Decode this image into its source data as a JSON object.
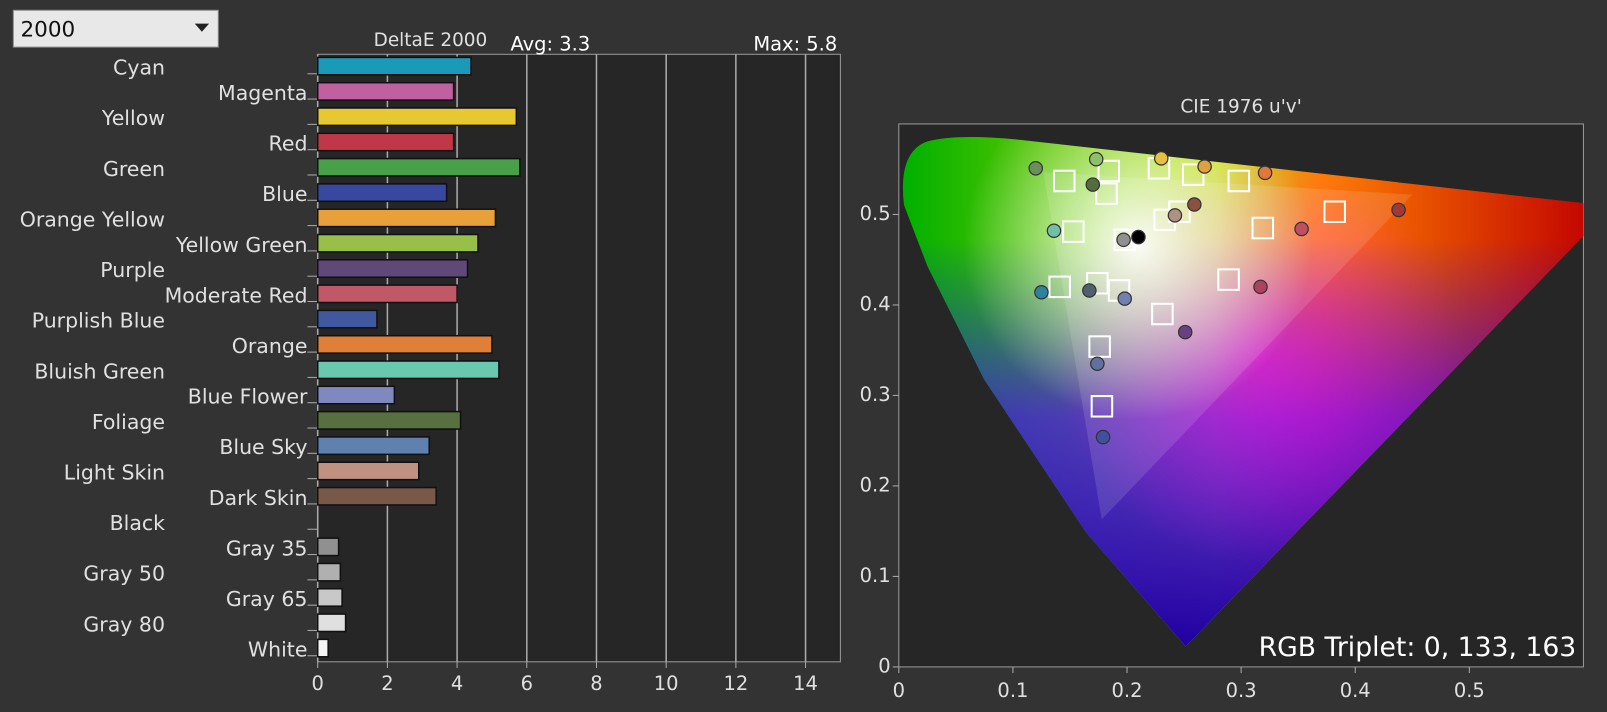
{
  "dropdown": "2000",
  "chart_data": [
    {
      "type": "bar",
      "orientation": "horizontal",
      "title": "DeltaE 2000",
      "annotations": [
        "Avg: 3.3",
        "Max: 5.8"
      ],
      "categories": [
        "Cyan",
        "Magenta",
        "Yellow",
        "Red",
        "Green",
        "Blue",
        "Orange Yellow",
        "Yellow Green",
        "Purple",
        "Moderate Red",
        "Purplish Blue",
        "Orange",
        "Bluish Green",
        "Blue Flower",
        "Foliage",
        "Blue Sky",
        "Light Skin",
        "Dark Skin",
        "Black",
        "Gray 35",
        "Gray 50",
        "Gray 65",
        "Gray 80",
        "White"
      ],
      "values": [
        4.4,
        3.9,
        5.7,
        3.9,
        5.8,
        3.7,
        5.1,
        4.6,
        4.3,
        4.0,
        1.7,
        5.0,
        5.2,
        2.2,
        4.1,
        3.2,
        2.9,
        3.4,
        null,
        0.6,
        0.65,
        0.7,
        0.8,
        0.3
      ],
      "colors": [
        "#1a9ab8",
        "#c060a0",
        "#e8c830",
        "#c03848",
        "#48a048",
        "#3848a0",
        "#e8a038",
        "#98c048",
        "#604878",
        "#c05868",
        "#4058a0",
        "#e08038",
        "#68c8b0",
        "#8088c0",
        "#587040",
        "#6080b0",
        "#c09080",
        "#785848",
        "#202020",
        "#909090",
        "#b0b0b0",
        "#c8c8c8",
        "#e0e0e0",
        "#f4f4f4"
      ],
      "xlim": [
        0,
        15
      ],
      "xticks": [
        0,
        2,
        4,
        6,
        8,
        10,
        12,
        14
      ],
      "grid": true
    },
    {
      "type": "scatter",
      "title": "CIE 1976 u'v'",
      "annotation": "RGB Triplet: 0, 133, 163",
      "series": [
        {
          "marker": "square",
          "color": "#ffffff",
          "x": [
            0.145,
            0.184,
            0.182,
            0.228,
            0.258,
            0.298,
            0.233,
            0.246,
            0.382,
            0.319,
            0.153,
            0.198,
            0.141,
            0.174,
            0.193,
            0.289,
            0.231,
            0.176,
            0.178
          ],
          "y": [
            0.537,
            0.548,
            0.523,
            0.551,
            0.544,
            0.537,
            0.494,
            0.503,
            0.503,
            0.485,
            0.481,
            0.472,
            0.42,
            0.424,
            0.416,
            0.428,
            0.39,
            0.354,
            0.288
          ]
        },
        {
          "marker": "circle",
          "colors": [
            "#6a8f5a",
            "#8fbf6a",
            "#e8c040",
            "#e0a040",
            "#e07838",
            "#556b40",
            "#8a5040",
            "#b09080",
            "#70c0a8",
            "#000000",
            "#909090",
            "#c05060",
            "#a03838",
            "#3080a0",
            "#506070",
            "#7080b0",
            "#b04060",
            "#6a4080",
            "#6070a0",
            "#4050a0"
          ],
          "x": [
            0.12,
            0.173,
            0.23,
            0.268,
            0.321,
            0.17,
            0.259,
            0.242,
            0.136,
            0.21,
            0.197,
            0.353,
            0.438,
            0.125,
            0.167,
            0.198,
            0.317,
            0.251,
            0.174,
            0.179
          ],
          "y": [
            0.551,
            0.561,
            0.562,
            0.553,
            0.546,
            0.533,
            0.511,
            0.499,
            0.482,
            0.475,
            0.472,
            0.484,
            0.505,
            0.414,
            0.416,
            0.407,
            0.42,
            0.37,
            0.335,
            0.254
          ]
        }
      ],
      "xlim": [
        0,
        0.6
      ],
      "ylim": [
        0,
        0.6
      ],
      "xticks": [
        0,
        0.1,
        0.2,
        0.3,
        0.4,
        0.5
      ],
      "yticks": [
        0,
        0.1,
        0.2,
        0.3,
        0.4,
        0.5
      ]
    }
  ]
}
